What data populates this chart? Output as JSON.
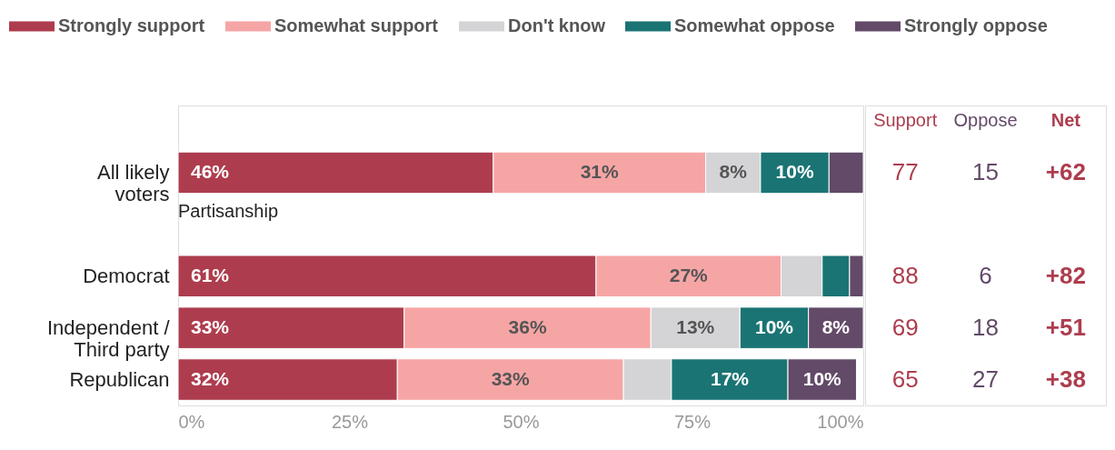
{
  "chart_data": {
    "type": "bar",
    "orientation": "horizontal",
    "stacked": true,
    "categories": [
      "All likely voters",
      null,
      "Democrat",
      "Independent / Third party",
      "Republican"
    ],
    "series": [
      {
        "name": "Strongly support",
        "color": "#ad3d4e",
        "values": [
          46,
          null,
          61,
          33,
          32
        ],
        "value_labels": [
          "46%",
          null,
          "61%",
          "33%",
          "32%"
        ]
      },
      {
        "name": "Somewhat support",
        "color": "#f6a5a5",
        "values": [
          31,
          null,
          27,
          36,
          33
        ],
        "value_labels": [
          "31%",
          null,
          "27%",
          "36%",
          "33%"
        ]
      },
      {
        "name": "Don't know",
        "color": "#d4d4d6",
        "values": [
          8,
          null,
          6,
          13,
          7
        ],
        "value_labels": [
          "8%",
          null,
          null,
          "13%",
          null
        ]
      },
      {
        "name": "Somewhat oppose",
        "color": "#1b7474",
        "values": [
          10,
          null,
          4,
          10,
          17
        ],
        "value_labels": [
          "10%",
          null,
          null,
          "10%",
          "17%"
        ]
      },
      {
        "name": "Strongly oppose",
        "color": "#624a68",
        "values": [
          5,
          null,
          2,
          8,
          10
        ],
        "value_labels": [
          null,
          null,
          null,
          "8%",
          "10%"
        ]
      }
    ],
    "xlim": [
      0,
      100
    ],
    "xticks": [
      {
        "value": 0,
        "label": "0%"
      },
      {
        "value": 25,
        "label": "25%"
      },
      {
        "value": 50,
        "label": "50%"
      },
      {
        "value": 75,
        "label": "75%"
      },
      {
        "value": 100,
        "label": "100%"
      }
    ],
    "legend": "top",
    "grid": false,
    "annotations": [
      "Partisanship",
      "Support",
      "Oppose",
      "Net",
      "77",
      "15",
      "+62",
      "88",
      "6",
      "+82",
      "69",
      "18",
      "+51",
      "65",
      "27",
      "+38"
    ]
  }
}
